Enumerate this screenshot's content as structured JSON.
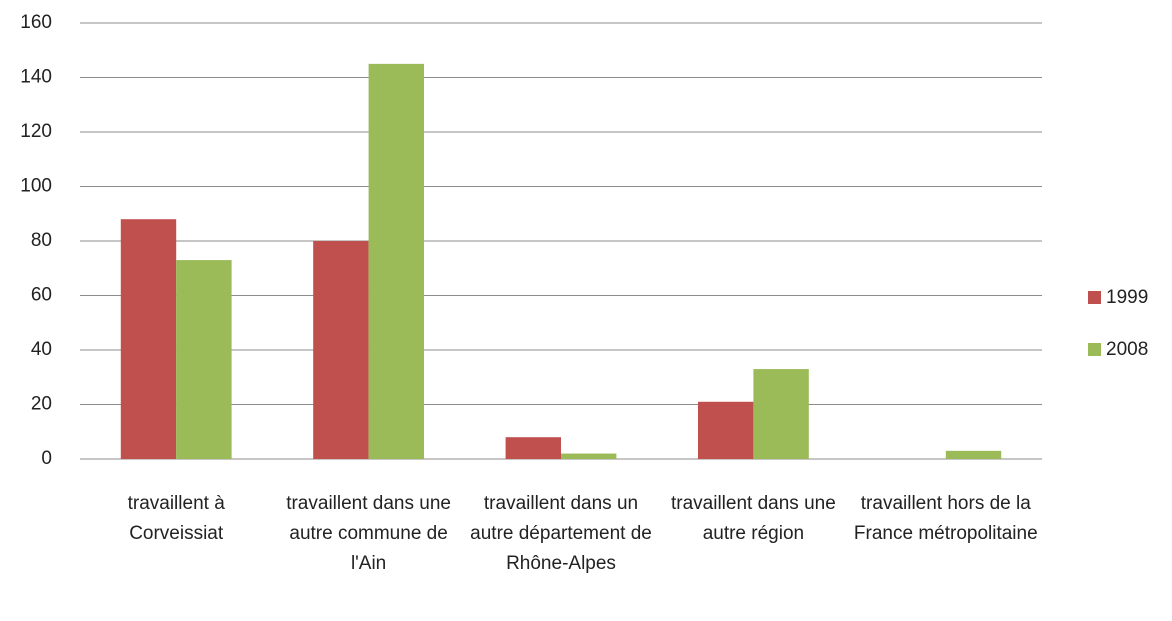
{
  "chart_data": {
    "type": "bar",
    "categories": [
      "travaillent à Corveissiat",
      "travaillent dans une autre commune de l'Ain",
      "travaillent dans un autre département de Rhône-Alpes",
      "travaillent dans une autre région",
      "travaillent hors de la France métropolitaine"
    ],
    "series": [
      {
        "name": "1999",
        "color": "#c0504d",
        "values": [
          88,
          80,
          8,
          21,
          0
        ]
      },
      {
        "name": "2008",
        "color": "#9bbb59",
        "values": [
          73,
          145,
          2,
          33,
          3
        ]
      }
    ],
    "ylim": [
      0,
      160
    ],
    "yticks": [
      0,
      20,
      40,
      60,
      80,
      100,
      120,
      140,
      160
    ],
    "grid": true,
    "legend": "right"
  }
}
